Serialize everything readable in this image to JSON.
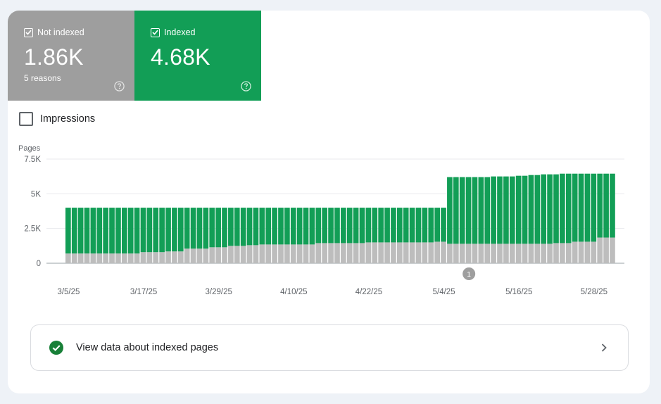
{
  "tiles": {
    "not_indexed": {
      "label": "Not indexed",
      "value": "1.86K",
      "subtext": "5 reasons",
      "color": "#9e9e9e",
      "checked": true
    },
    "indexed": {
      "label": "Indexed",
      "value": "4.68K",
      "color": "#129e56",
      "checked": true
    }
  },
  "impressions": {
    "label": "Impressions",
    "checked": false
  },
  "chart_data": {
    "type": "bar",
    "stacked": true,
    "ylabel": "Pages",
    "ylim": [
      0,
      7500
    ],
    "yticks": [
      "0",
      "2.5K",
      "5K",
      "7.5K"
    ],
    "ytick_values": [
      0,
      2500,
      5000,
      7500
    ],
    "xtick_labels": [
      "3/5/25",
      "3/17/25",
      "3/29/25",
      "4/10/25",
      "4/22/25",
      "5/4/25",
      "5/16/25",
      "5/28/25"
    ],
    "xtick_index": [
      0,
      12,
      24,
      36,
      48,
      60,
      72,
      84
    ],
    "grid": true,
    "annotation": {
      "label": "1",
      "at_index": 64
    },
    "series": [
      {
        "key": "not_indexed",
        "color": "#bdbdbd",
        "values": [
          700,
          700,
          700,
          700,
          700,
          700,
          700,
          700,
          700,
          700,
          700,
          700,
          800,
          800,
          800,
          800,
          850,
          850,
          850,
          1050,
          1050,
          1050,
          1050,
          1150,
          1150,
          1150,
          1250,
          1250,
          1250,
          1300,
          1300,
          1350,
          1350,
          1350,
          1350,
          1350,
          1350,
          1350,
          1350,
          1350,
          1450,
          1450,
          1450,
          1450,
          1450,
          1450,
          1450,
          1450,
          1500,
          1500,
          1500,
          1500,
          1500,
          1500,
          1500,
          1500,
          1500,
          1500,
          1500,
          1550,
          1550,
          1400,
          1400,
          1400,
          1400,
          1400,
          1400,
          1400,
          1400,
          1400,
          1400,
          1400,
          1400,
          1400,
          1400,
          1400,
          1400,
          1400,
          1450,
          1450,
          1450,
          1550,
          1550,
          1550,
          1550,
          1850,
          1850,
          1850
        ]
      },
      {
        "key": "indexed",
        "color": "#129e56",
        "values": [
          3300,
          3300,
          3300,
          3300,
          3300,
          3300,
          3300,
          3300,
          3300,
          3300,
          3300,
          3300,
          3200,
          3200,
          3200,
          3200,
          3150,
          3150,
          3150,
          2950,
          2950,
          2950,
          2950,
          2850,
          2850,
          2850,
          2750,
          2750,
          2750,
          2700,
          2700,
          2650,
          2650,
          2650,
          2650,
          2650,
          2650,
          2650,
          2650,
          2650,
          2550,
          2550,
          2550,
          2550,
          2550,
          2550,
          2550,
          2550,
          2500,
          2500,
          2500,
          2500,
          2500,
          2500,
          2500,
          2500,
          2500,
          2500,
          2500,
          2450,
          2450,
          4800,
          4800,
          4800,
          4800,
          4800,
          4800,
          4800,
          4850,
          4850,
          4850,
          4850,
          4900,
          4900,
          4950,
          4950,
          5000,
          5000,
          4950,
          5000,
          5000,
          4900,
          4900,
          4900,
          4900,
          4600,
          4600,
          4600
        ]
      }
    ]
  },
  "link": {
    "label": "View data about indexed pages",
    "icon": "check-circle-icon",
    "icon_color": "#188038"
  }
}
